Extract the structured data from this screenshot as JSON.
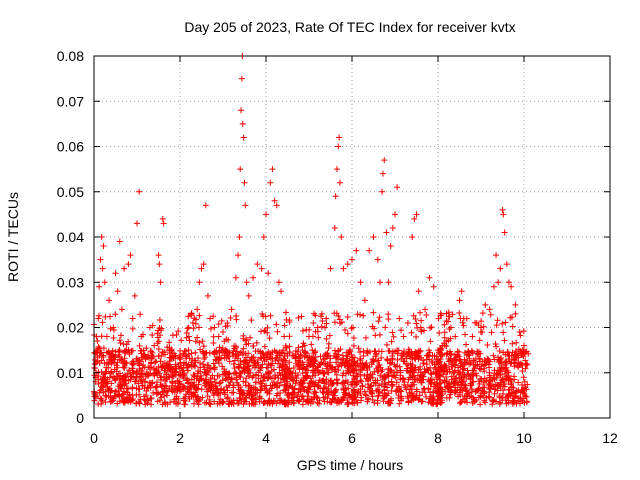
{
  "chart_data": {
    "type": "scatter",
    "title": "Day 205 of 2023, Rate Of TEC Index for receiver kvtx",
    "xlabel": "GPS time / hours",
    "ylabel": "ROTI / TECUs",
    "xlim": [
      0,
      12
    ],
    "ylim": [
      0,
      0.08
    ],
    "x_ticks": [
      0,
      2,
      4,
      6,
      8,
      10,
      12
    ],
    "y_ticks": [
      0,
      0.01,
      0.02,
      0.03,
      0.04,
      0.05,
      0.06,
      0.07,
      0.08
    ],
    "x_tick_labels": [
      "0",
      "2",
      "4",
      "6",
      "8",
      "10",
      "12"
    ],
    "y_tick_labels": [
      "0",
      "0.01",
      "0.02",
      "0.03",
      "0.04",
      "0.05",
      "0.06",
      "0.07",
      "0.08"
    ],
    "grid": true,
    "legend": "none",
    "marker": "+",
    "series_color": "#ff0000",
    "series": [
      {
        "values": [
          [
            0.05,
            0.01
          ],
          [
            0.1,
            0.022
          ],
          [
            0.12,
            0.029
          ],
          [
            0.15,
            0.035
          ],
          [
            0.18,
            0.04
          ],
          [
            0.2,
            0.033
          ],
          [
            0.22,
            0.038
          ],
          [
            0.25,
            0.03
          ],
          [
            0.3,
            0.018
          ],
          [
            0.35,
            0.026
          ],
          [
            0.4,
            0.012
          ],
          [
            0.45,
            0.02
          ],
          [
            0.5,
            0.032
          ],
          [
            0.55,
            0.028
          ],
          [
            0.6,
            0.039
          ],
          [
            0.65,
            0.024
          ],
          [
            0.7,
            0.033
          ],
          [
            0.75,
            0.015
          ],
          [
            0.8,
            0.034
          ],
          [
            0.85,
            0.036
          ],
          [
            0.9,
            0.022
          ],
          [
            0.95,
            0.027
          ],
          [
            1.0,
            0.043
          ],
          [
            1.05,
            0.05
          ],
          [
            1.1,
            0.018
          ],
          [
            1.2,
            0.013
          ],
          [
            1.3,
            0.02
          ],
          [
            1.4,
            0.016
          ],
          [
            1.5,
            0.036
          ],
          [
            1.52,
            0.034
          ],
          [
            1.55,
            0.03
          ],
          [
            1.6,
            0.044
          ],
          [
            1.62,
            0.043
          ],
          [
            1.7,
            0.012
          ],
          [
            1.9,
            0.011
          ],
          [
            2.0,
            0.013
          ],
          [
            2.1,
            0.003
          ],
          [
            2.2,
            0.015
          ],
          [
            2.3,
            0.021
          ],
          [
            2.4,
            0.024
          ],
          [
            2.45,
            0.03
          ],
          [
            2.5,
            0.033
          ],
          [
            2.55,
            0.034
          ],
          [
            2.6,
            0.047
          ],
          [
            2.65,
            0.027
          ],
          [
            2.7,
            0.022
          ],
          [
            2.8,
            0.02
          ],
          [
            2.9,
            0.018
          ],
          [
            3.0,
            0.019
          ],
          [
            3.1,
            0.021
          ],
          [
            3.2,
            0.024
          ],
          [
            3.3,
            0.031
          ],
          [
            3.35,
            0.036
          ],
          [
            3.38,
            0.04
          ],
          [
            3.4,
            0.055
          ],
          [
            3.42,
            0.068
          ],
          [
            3.44,
            0.075
          ],
          [
            3.45,
            0.08
          ],
          [
            3.46,
            0.065
          ],
          [
            3.48,
            0.062
          ],
          [
            3.5,
            0.052
          ],
          [
            3.52,
            0.047
          ],
          [
            3.55,
            0.03
          ],
          [
            3.6,
            0.027
          ],
          [
            3.7,
            0.031
          ],
          [
            3.8,
            0.034
          ],
          [
            3.9,
            0.033
          ],
          [
            3.95,
            0.04
          ],
          [
            4.0,
            0.045
          ],
          [
            4.05,
            0.032
          ],
          [
            4.1,
            0.052
          ],
          [
            4.15,
            0.055
          ],
          [
            4.2,
            0.048
          ],
          [
            4.25,
            0.047
          ],
          [
            4.3,
            0.03
          ],
          [
            4.35,
            0.028
          ],
          [
            4.4,
            0.015
          ],
          [
            4.5,
            0.011
          ],
          [
            4.6,
            0.009
          ],
          [
            4.7,
            0.012
          ],
          [
            4.8,
            0.014
          ],
          [
            4.9,
            0.016
          ],
          [
            5.0,
            0.018
          ],
          [
            5.1,
            0.021
          ],
          [
            5.2,
            0.02
          ],
          [
            5.3,
            0.023
          ],
          [
            5.4,
            0.022
          ],
          [
            5.5,
            0.033
          ],
          [
            5.6,
            0.042
          ],
          [
            5.62,
            0.049
          ],
          [
            5.65,
            0.055
          ],
          [
            5.68,
            0.06
          ],
          [
            5.7,
            0.062
          ],
          [
            5.72,
            0.052
          ],
          [
            5.75,
            0.04
          ],
          [
            5.8,
            0.033
          ],
          [
            5.9,
            0.034
          ],
          [
            6.0,
            0.035
          ],
          [
            6.1,
            0.037
          ],
          [
            6.2,
            0.03
          ],
          [
            6.3,
            0.026
          ],
          [
            6.4,
            0.037
          ],
          [
            6.5,
            0.04
          ],
          [
            6.6,
            0.035
          ],
          [
            6.65,
            0.03
          ],
          [
            6.7,
            0.05
          ],
          [
            6.72,
            0.054
          ],
          [
            6.75,
            0.057
          ],
          [
            6.8,
            0.041
          ],
          [
            6.85,
            0.03
          ],
          [
            6.9,
            0.038
          ],
          [
            6.95,
            0.042
          ],
          [
            7.0,
            0.045
          ],
          [
            7.05,
            0.051
          ],
          [
            7.1,
            0.022
          ],
          [
            7.2,
            0.018
          ],
          [
            7.3,
            0.021
          ],
          [
            7.4,
            0.04
          ],
          [
            7.45,
            0.044
          ],
          [
            7.5,
            0.045
          ],
          [
            7.55,
            0.028
          ],
          [
            7.6,
            0.02
          ],
          [
            7.7,
            0.024
          ],
          [
            7.8,
            0.031
          ],
          [
            7.9,
            0.029
          ],
          [
            8.0,
            0.015
          ],
          [
            8.1,
            0.016
          ],
          [
            8.2,
            0.014
          ],
          [
            8.3,
            0.02
          ],
          [
            8.4,
            0.018
          ],
          [
            8.5,
            0.026
          ],
          [
            8.55,
            0.028
          ],
          [
            8.6,
            0.022
          ],
          [
            8.7,
            0.014
          ],
          [
            8.8,
            0.018
          ],
          [
            8.9,
            0.021
          ],
          [
            9.0,
            0.02
          ],
          [
            9.1,
            0.025
          ],
          [
            9.2,
            0.024
          ],
          [
            9.3,
            0.029
          ],
          [
            9.35,
            0.036
          ],
          [
            9.4,
            0.03
          ],
          [
            9.45,
            0.033
          ],
          [
            9.5,
            0.046
          ],
          [
            9.52,
            0.045
          ],
          [
            9.55,
            0.041
          ],
          [
            9.6,
            0.034
          ],
          [
            9.65,
            0.03
          ],
          [
            9.7,
            0.029
          ],
          [
            9.8,
            0.025
          ],
          [
            9.9,
            0.019
          ],
          [
            10.0,
            0.016
          ],
          [
            10.05,
            0.012
          ]
        ]
      }
    ],
    "dense_band": {
      "x_ranges": [
        [
          0.0,
          1.8
        ],
        [
          1.75,
          4.5
        ],
        [
          4.4,
          8.1
        ],
        [
          7.95,
          10.1
        ]
      ],
      "y_range": [
        0.003,
        0.02
      ],
      "typical_center": 0.009
    }
  }
}
